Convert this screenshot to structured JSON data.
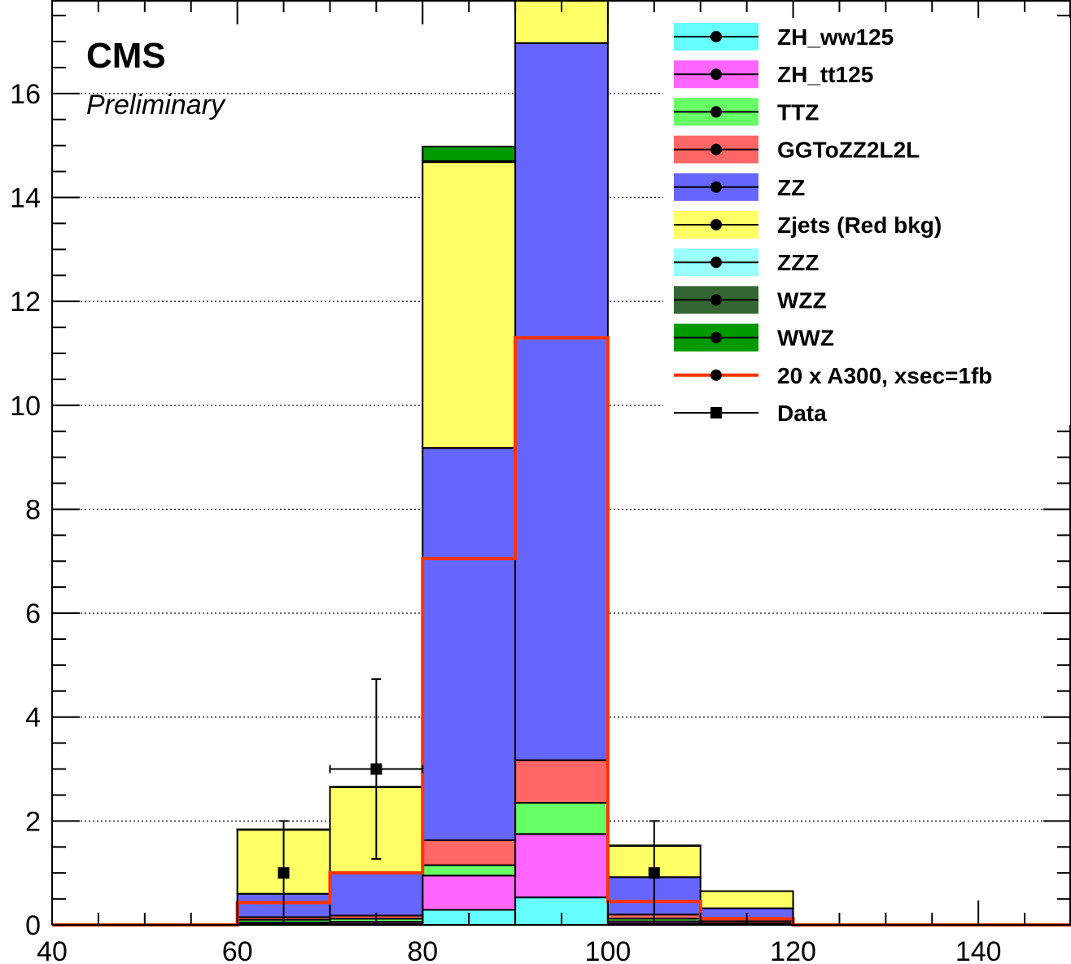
{
  "header": {
    "experiment": "CMS",
    "status": "Preliminary"
  },
  "chart_data": {
    "type": "bar",
    "stacked": true,
    "histogram": true,
    "bin_edges": [
      40,
      50,
      60,
      70,
      80,
      90,
      100,
      110,
      120,
      130,
      140,
      150
    ],
    "xlim": [
      40,
      150
    ],
    "ylim": [
      0,
      17.8
    ],
    "x_ticks": [
      40,
      60,
      80,
      100,
      120,
      140
    ],
    "y_ticks": [
      0,
      2,
      4,
      6,
      8,
      10,
      12,
      14,
      16
    ],
    "grid": "horizontal dotted",
    "legend_position": "top-right",
    "xlabel": "",
    "ylabel": "",
    "stack_order_bottom_to_top": [
      "ZH_ww125",
      "ZH_tt125",
      "TTZ",
      "GGToZZ2L2L",
      "ZZ",
      "Zjets (Red bkg)",
      "ZZZ",
      "WZZ",
      "WWZ"
    ],
    "series": [
      {
        "name": "ZH_ww125",
        "color": "#66ffff",
        "values": [
          0,
          0,
          0.02,
          0.02,
          0.29,
          0.53,
          0.03,
          0.01,
          0,
          0,
          0
        ]
      },
      {
        "name": "ZH_tt125",
        "color": "#ff66ff",
        "values": [
          0,
          0,
          0.03,
          0.04,
          0.66,
          1.22,
          0.04,
          0.01,
          0,
          0,
          0
        ]
      },
      {
        "name": "TTZ",
        "color": "#66ff66",
        "values": [
          0,
          0,
          0.05,
          0.06,
          0.2,
          0.6,
          0.05,
          0.01,
          0,
          0,
          0
        ]
      },
      {
        "name": "GGToZZ2L2L",
        "color": "#ff6666",
        "values": [
          0,
          0,
          0.05,
          0.06,
          0.48,
          0.82,
          0.08,
          0.04,
          0,
          0,
          0
        ]
      },
      {
        "name": "ZZ",
        "color": "#6666ff",
        "values": [
          0,
          0,
          0.45,
          0.82,
          7.55,
          13.8,
          0.72,
          0.25,
          0,
          0,
          0
        ]
      },
      {
        "name": "Zjets (Red bkg)",
        "color": "#ffff66",
        "values": [
          0,
          0,
          1.23,
          1.65,
          5.5,
          1.2,
          0.6,
          0.33,
          0,
          0,
          0
        ]
      },
      {
        "name": "ZZZ",
        "color": "#99ffff",
        "values": [
          0,
          0,
          0,
          0,
          0,
          0,
          0,
          0,
          0,
          0,
          0
        ]
      },
      {
        "name": "WZZ",
        "color": "#336633",
        "values": [
          0,
          0,
          0,
          0,
          0.02,
          0.02,
          0,
          0,
          0,
          0,
          0
        ]
      },
      {
        "name": "WWZ",
        "color": "#009900",
        "values": [
          0,
          0,
          0.01,
          0.01,
          0.28,
          0.05,
          0.01,
          0,
          0,
          0,
          0
        ]
      }
    ],
    "signal": {
      "name": "20 x A300, xsec=1fb",
      "color": "#ff3300",
      "values": [
        0,
        0,
        0.43,
        1.0,
        7.05,
        11.3,
        0.45,
        0.12,
        0,
        0,
        0
      ]
    },
    "data": {
      "name": "Data",
      "points": [
        {
          "x": 65,
          "y": 1,
          "err_low": 1,
          "err_high": 1,
          "xerr": 0
        },
        {
          "x": 75,
          "y": 3,
          "err_low": 1.73,
          "err_high": 1.73,
          "xerr": 5
        },
        {
          "x": 105,
          "y": 1,
          "err_low": 1,
          "err_high": 1,
          "xerr": 0
        }
      ]
    },
    "legend": [
      {
        "label": "ZH_ww125",
        "color": "#66ffff",
        "kind": "fill"
      },
      {
        "label": "ZH_tt125",
        "color": "#ff66ff",
        "kind": "fill"
      },
      {
        "label": "TTZ",
        "color": "#66ff66",
        "kind": "fill"
      },
      {
        "label": "GGToZZ2L2L",
        "color": "#ff6666",
        "kind": "fill"
      },
      {
        "label": "ZZ",
        "color": "#6666ff",
        "kind": "fill"
      },
      {
        "label": "Zjets (Red bkg)",
        "color": "#ffff66",
        "kind": "fill"
      },
      {
        "label": "ZZZ",
        "color": "#99ffff",
        "kind": "fill"
      },
      {
        "label": "WZZ",
        "color": "#336633",
        "kind": "fill"
      },
      {
        "label": "WWZ",
        "color": "#009900",
        "kind": "fill"
      },
      {
        "label": "20 x A300, xsec=1fb",
        "color": "#ff3300",
        "kind": "line"
      },
      {
        "label": "Data",
        "color": "#000000",
        "kind": "marker"
      }
    ]
  }
}
